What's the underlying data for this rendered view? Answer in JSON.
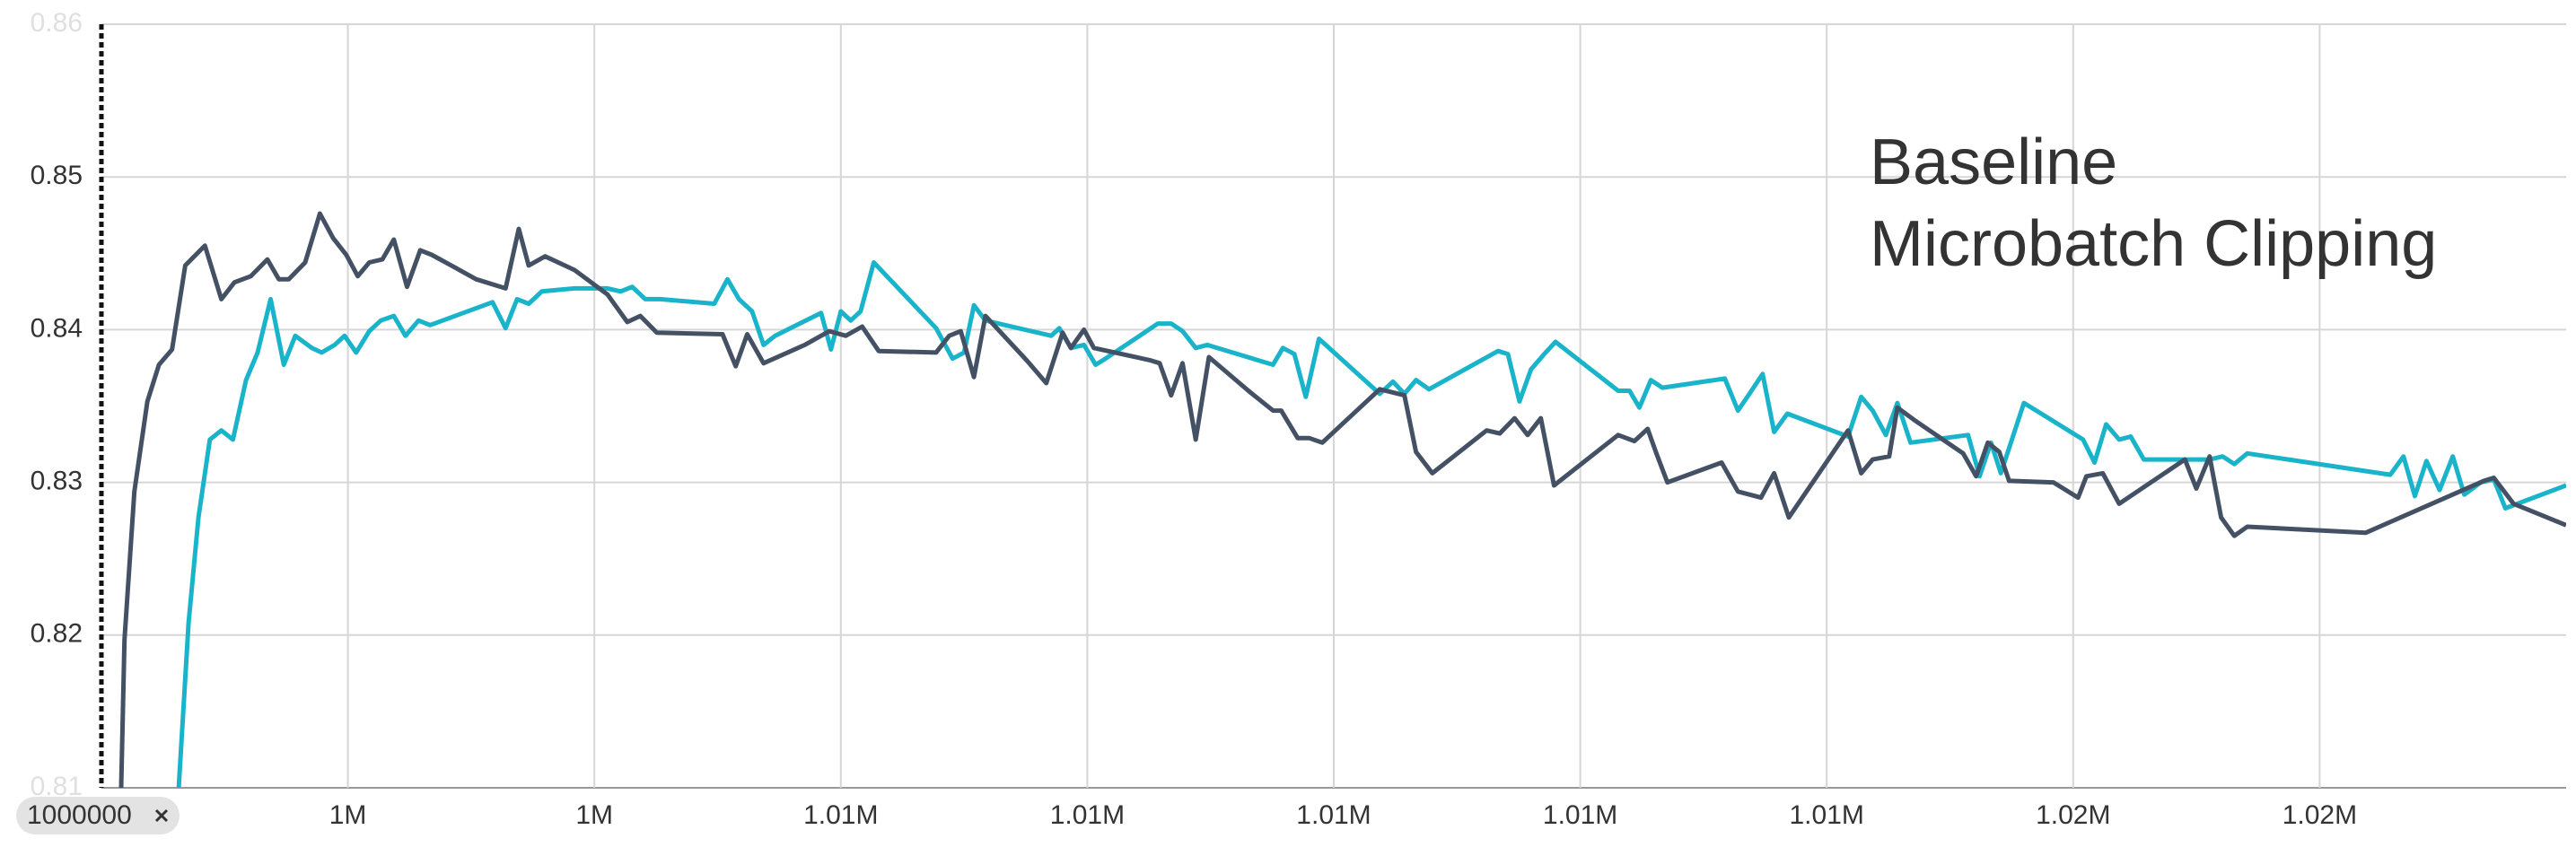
{
  "chart_data": {
    "type": "line",
    "xlim": [
      1000000,
      1020000
    ],
    "ylim": [
      0.81,
      0.86
    ],
    "yticks": [
      0.81,
      0.82,
      0.83,
      0.84,
      0.85,
      0.86
    ],
    "xticks": [
      {
        "value": 1002000,
        "label": "1M"
      },
      {
        "value": 1004000,
        "label": "1M"
      },
      {
        "value": 1006000,
        "label": "1.01M"
      },
      {
        "value": 1008000,
        "label": "1.01M"
      },
      {
        "value": 1010000,
        "label": "1.01M"
      },
      {
        "value": 1012000,
        "label": "1.01M"
      },
      {
        "value": 1014000,
        "label": "1.01M"
      },
      {
        "value": 1016000,
        "label": "1.02M"
      },
      {
        "value": 1018000,
        "label": "1.02M"
      }
    ],
    "grid": true,
    "marker_x": 1000000,
    "series": [
      {
        "name": "Baseline",
        "color": "#1ab4ca",
        "label_color": "#6fa3d8",
        "x": [
          1000627,
          1000707,
          1000787,
          1000880,
          1000973,
          1001067,
          1001173,
          1001267,
          1001373,
          1001480,
          1001573,
          1001707,
          1001787,
          1001893,
          1001973,
          1002067,
          1002173,
          1002267,
          1002373,
          1002467,
          1002573,
          1002667,
          1003173,
          1003280,
          1003373,
          1003467,
          1003573,
          1003840,
          1004107,
          1004213,
          1004307,
          1004413,
          1004533,
          1004973,
          1005080,
          1005173,
          1005280,
          1005373,
          1005467,
          1005840,
          1005920,
          1006000,
          1006080,
          1006160,
          1006267,
          1006773,
          1006907,
          1007000,
          1007080,
          1007173,
          1007707,
          1007773,
          1007867,
          1007973,
          1008067,
          1008147,
          1008573,
          1008680,
          1008773,
          1008880,
          1008973,
          1009507,
          1009587,
          1009680,
          1009773,
          1009880,
          1010373,
          1010480,
          1010573,
          1010667,
          1010773,
          1011333,
          1011413,
          1011507,
          1011600,
          1011707,
          1011800,
          1012307,
          1012400,
          1012480,
          1012573,
          1012667,
          1013173,
          1013280,
          1013373,
          1013480,
          1013573,
          1013680,
          1014173,
          1014280,
          1014373,
          1014480,
          1014573,
          1014680,
          1015147,
          1015240,
          1015333,
          1015413,
          1015600,
          1016080,
          1016173,
          1016267,
          1016373,
          1016467,
          1016573,
          1017107,
          1017213,
          1017307,
          1017413,
          1018573,
          1018680,
          1018773,
          1018867,
          1018973,
          1019080,
          1019173,
          1019307,
          1019413,
          1019507,
          1020000
        ],
        "values": [
          0.81,
          0.8208,
          0.8277,
          0.8328,
          0.8334,
          0.8328,
          0.8367,
          0.8385,
          0.842,
          0.8377,
          0.8396,
          0.8388,
          0.8385,
          0.839,
          0.8396,
          0.8385,
          0.8399,
          0.8406,
          0.8409,
          0.8396,
          0.8406,
          0.8403,
          0.8418,
          0.8401,
          0.842,
          0.8417,
          0.8425,
          0.8427,
          0.8427,
          0.8425,
          0.8428,
          0.842,
          0.842,
          0.8417,
          0.8433,
          0.842,
          0.8412,
          0.839,
          0.8396,
          0.8411,
          0.8387,
          0.8412,
          0.8406,
          0.8412,
          0.8444,
          0.8401,
          0.8381,
          0.8385,
          0.8416,
          0.8406,
          0.8396,
          0.8401,
          0.8388,
          0.839,
          0.8377,
          0.8381,
          0.8404,
          0.8404,
          0.8399,
          0.8388,
          0.839,
          0.8377,
          0.8388,
          0.8384,
          0.8356,
          0.8394,
          0.8358,
          0.8366,
          0.8358,
          0.8367,
          0.8361,
          0.8386,
          0.8384,
          0.8353,
          0.8374,
          0.8384,
          0.8392,
          0.836,
          0.836,
          0.8349,
          0.8367,
          0.8362,
          0.8368,
          0.8347,
          0.8358,
          0.8371,
          0.8333,
          0.8345,
          0.833,
          0.8356,
          0.8347,
          0.8331,
          0.8352,
          0.8326,
          0.8331,
          0.8304,
          0.8326,
          0.8306,
          0.8352,
          0.8328,
          0.8313,
          0.8338,
          0.8328,
          0.833,
          0.8315,
          0.8315,
          0.8317,
          0.8312,
          0.8319,
          0.8305,
          0.8317,
          0.8291,
          0.8314,
          0.8295,
          0.8317,
          0.8292,
          0.83,
          0.8302,
          0.8283,
          0.8298
        ]
      },
      {
        "name": "Microbatch Clipping",
        "color": "#445165",
        "label_color": "#555555",
        "x": [
          1000160,
          1000187,
          1000267,
          1000373,
          1000467,
          1000573,
          1000680,
          1000840,
          1000973,
          1001080,
          1001213,
          1001347,
          1001440,
          1001520,
          1001653,
          1001773,
          1001880,
          1001987,
          1002080,
          1002173,
          1002280,
          1002373,
          1002480,
          1002587,
          1002680,
          1002840,
          1003040,
          1003280,
          1003387,
          1003467,
          1003600,
          1003840,
          1004107,
          1004267,
          1004373,
          1004507,
          1005040,
          1005147,
          1005240,
          1005373,
          1005707,
          1005907,
          1006040,
          1006173,
          1006307,
          1006773,
          1006880,
          1006973,
          1007080,
          1007173,
          1007507,
          1007667,
          1007800,
          1007867,
          1007973,
          1008053,
          1008507,
          1008587,
          1008680,
          1008773,
          1008880,
          1008987,
          1009307,
          1009507,
          1009573,
          1009707,
          1009800,
          1009907,
          1010373,
          1010573,
          1010667,
          1010800,
          1011240,
          1011347,
          1011467,
          1011573,
          1011680,
          1011787,
          1012307,
          1012440,
          1012547,
          1012613,
          1012707,
          1013147,
          1013280,
          1013467,
          1013573,
          1013693,
          1014173,
          1014280,
          1014373,
          1014507,
          1014573,
          1014707,
          1015107,
          1015213,
          1015307,
          1015400,
          1015480,
          1015840,
          1016040,
          1016107,
          1016240,
          1016373,
          1016907,
          1016999,
          1017107,
          1017200,
          1017307,
          1017413,
          1018373,
          1019333,
          1019413,
          1019573,
          1020000
        ],
        "values": [
          0.81,
          0.8197,
          0.8294,
          0.8353,
          0.8377,
          0.8387,
          0.8442,
          0.8455,
          0.842,
          0.8431,
          0.8435,
          0.8446,
          0.8433,
          0.8433,
          0.8444,
          0.8476,
          0.846,
          0.8449,
          0.8435,
          0.8444,
          0.8446,
          0.8459,
          0.8428,
          0.8452,
          0.8449,
          0.8442,
          0.8433,
          0.8427,
          0.8466,
          0.8442,
          0.8448,
          0.8439,
          0.8423,
          0.8405,
          0.8409,
          0.8398,
          0.8397,
          0.8376,
          0.8397,
          0.8378,
          0.839,
          0.8399,
          0.8396,
          0.8402,
          0.8386,
          0.8385,
          0.8396,
          0.8399,
          0.8369,
          0.8409,
          0.838,
          0.8365,
          0.8398,
          0.8388,
          0.84,
          0.8388,
          0.838,
          0.8378,
          0.8357,
          0.8378,
          0.8328,
          0.8382,
          0.836,
          0.8347,
          0.8347,
          0.8329,
          0.8329,
          0.8326,
          0.8361,
          0.8357,
          0.832,
          0.8306,
          0.8334,
          0.8332,
          0.8342,
          0.8331,
          0.8342,
          0.8298,
          0.8331,
          0.8327,
          0.8335,
          0.832,
          0.83,
          0.8313,
          0.8294,
          0.829,
          0.8306,
          0.8277,
          0.8334,
          0.8306,
          0.8315,
          0.8317,
          0.8349,
          0.8341,
          0.8319,
          0.8304,
          0.8326,
          0.832,
          0.8301,
          0.83,
          0.829,
          0.8304,
          0.8306,
          0.8286,
          0.8315,
          0.8296,
          0.8317,
          0.8277,
          0.8265,
          0.8271,
          0.8267,
          0.8301,
          0.8303,
          0.8286,
          0.8272
        ]
      }
    ]
  }
}
